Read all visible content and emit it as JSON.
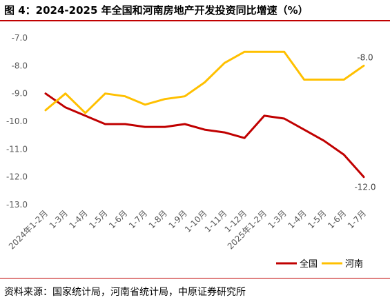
{
  "figure": {
    "title": "图 4：2024-2025 年全国和河南房地产开发投资同比增速（%）",
    "source": "资料来源：国家统计局，河南省统计局，中原证券研究所"
  },
  "chart_data": {
    "type": "line",
    "title": "",
    "xlabel": "",
    "ylabel": "",
    "ylim": [
      -13.0,
      -7.0
    ],
    "yticks": [
      "-7.0",
      "-8.0",
      "-9.0",
      "-10.0",
      "-11.0",
      "-12.0",
      "-13.0"
    ],
    "grid": false,
    "legend_position": "bottom-right",
    "categories": [
      "2024年1-2月",
      "1-3月",
      "1-4月",
      "1-5月",
      "1-6月",
      "1-7月",
      "1-8月",
      "1-9月",
      "1-10月",
      "1-11月",
      "1-12月",
      "2025年1-2月",
      "1-3月",
      "1-4月",
      "1-5月",
      "1-6月",
      "1-7月"
    ],
    "series": [
      {
        "name": "全国",
        "color": "#c00000",
        "values": [
          -9.0,
          -9.5,
          -9.8,
          -10.1,
          -10.1,
          -10.2,
          -10.2,
          -10.1,
          -10.3,
          -10.4,
          -10.6,
          -9.8,
          -9.9,
          -10.3,
          -10.7,
          -11.2,
          -12.0
        ]
      },
      {
        "name": "河南",
        "color": "#ffc000",
        "values": [
          -9.6,
          -9.0,
          -9.7,
          -9.0,
          -9.1,
          -9.4,
          -9.2,
          -9.1,
          -8.6,
          -7.9,
          -7.5,
          -7.5,
          -7.5,
          -8.5,
          -8.5,
          -8.5,
          -8.0
        ]
      }
    ],
    "data_labels": [
      {
        "series": "河南",
        "index": 16,
        "text": "-8.0"
      },
      {
        "series": "全国",
        "index": 16,
        "text": "-12.0"
      }
    ]
  }
}
